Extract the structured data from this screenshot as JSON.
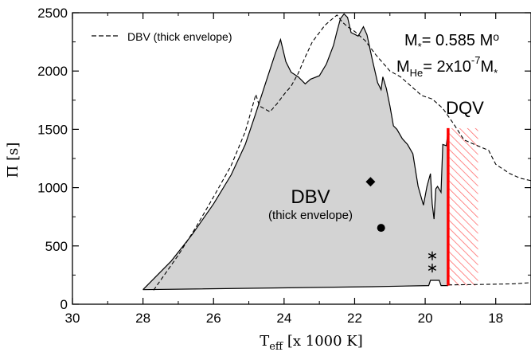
{
  "chart_data": {
    "type": "area",
    "title": "",
    "xlabel": {
      "main": "T",
      "sub": "eff",
      "rest": " [x 1000 K]"
    },
    "ylabel": "Π [s]",
    "xlim": [
      30,
      17
    ],
    "ylim": [
      0,
      2500
    ],
    "xticks": [
      30,
      28,
      26,
      24,
      22,
      20,
      18
    ],
    "yticks": [
      0,
      500,
      1000,
      1500,
      2000,
      2500
    ],
    "xtick_labels": [
      "30",
      "28",
      "26",
      "24",
      "22",
      "20",
      "18"
    ],
    "ytick_labels": [
      "0",
      "500",
      "1000",
      "1500",
      "2000",
      "2500"
    ],
    "grid": false,
    "legend": {
      "position": "top-left",
      "entries": [
        {
          "label": "DBV (thick envelope)",
          "style": "dashed"
        }
      ]
    },
    "parameters": {
      "mass": {
        "prefix": "M",
        "sub": "*",
        "mid": "= 0.585 M",
        "sub2": "o"
      },
      "helium": {
        "prefix": "M",
        "sub": "He",
        "mid": "= 2x10",
        "sup": "-7",
        "end": "M",
        "sub2": "*"
      }
    },
    "region_labels": {
      "dbv": "DBV",
      "dbv_sub": "(thick envelope)",
      "dqv": "DQV"
    },
    "colors": {
      "fill": "#d3d3d3",
      "dqv": "#ff0000",
      "line": "#000000"
    },
    "series": [
      {
        "style": "solid",
        "role": "shaded instability region (upper boundary)",
        "points": [
          [
            28.0,
            125
          ],
          [
            27.2,
            370
          ],
          [
            26.6,
            600
          ],
          [
            26.0,
            860
          ],
          [
            25.5,
            1110
          ],
          [
            25.1,
            1370
          ],
          [
            24.8,
            1640
          ],
          [
            24.5,
            1920
          ],
          [
            24.25,
            2150
          ],
          [
            24.1,
            2270
          ],
          [
            23.95,
            2080
          ],
          [
            23.8,
            1990
          ],
          [
            23.6,
            1950
          ],
          [
            23.4,
            1890
          ],
          [
            23.25,
            1930
          ],
          [
            23.0,
            1960
          ],
          [
            22.8,
            2060
          ],
          [
            22.6,
            2220
          ],
          [
            22.5,
            2340
          ],
          [
            22.4,
            2450
          ],
          [
            22.3,
            2490
          ],
          [
            22.2,
            2460
          ],
          [
            22.1,
            2330
          ],
          [
            21.9,
            2300
          ],
          [
            21.75,
            2380
          ],
          [
            21.65,
            2310
          ],
          [
            21.5,
            2100
          ],
          [
            21.35,
            1900
          ],
          [
            21.25,
            1840
          ],
          [
            21.2,
            1950
          ],
          [
            21.1,
            1850
          ],
          [
            21.0,
            1700
          ],
          [
            20.9,
            1530
          ],
          [
            20.8,
            1500
          ],
          [
            20.65,
            1420
          ],
          [
            20.5,
            1370
          ],
          [
            20.35,
            1290
          ],
          [
            20.2,
            1010
          ],
          [
            20.05,
            850
          ],
          [
            19.95,
            1010
          ],
          [
            19.85,
            1120
          ],
          [
            19.8,
            860
          ],
          [
            19.75,
            730
          ],
          [
            19.7,
            990
          ],
          [
            19.65,
            1010
          ],
          [
            19.55,
            960
          ],
          [
            19.5,
            1370
          ],
          [
            19.4,
            1360
          ],
          [
            19.35,
            1500
          ]
        ],
        "lower_boundary": [
          [
            28.0,
            125
          ],
          [
            21.5,
            150
          ],
          [
            19.9,
            160
          ],
          [
            19.85,
            205
          ],
          [
            19.6,
            205
          ],
          [
            19.55,
            160
          ],
          [
            19.35,
            160
          ]
        ]
      },
      {
        "style": "dashed",
        "name": "DBV (thick envelope)",
        "points": [
          [
            27.7,
            120
          ],
          [
            27.0,
            420
          ],
          [
            26.5,
            660
          ],
          [
            26.0,
            920
          ],
          [
            25.5,
            1190
          ],
          [
            25.1,
            1480
          ],
          [
            24.8,
            1800
          ],
          [
            24.7,
            1700
          ],
          [
            24.4,
            1650
          ],
          [
            24.2,
            1720
          ],
          [
            24.0,
            1800
          ],
          [
            23.8,
            1870
          ],
          [
            23.6,
            1980
          ],
          [
            23.4,
            2120
          ],
          [
            23.2,
            2250
          ],
          [
            23.0,
            2330
          ],
          [
            22.85,
            2390
          ],
          [
            22.7,
            2430
          ],
          [
            22.5,
            2480
          ],
          [
            22.35,
            2420
          ],
          [
            22.2,
            2380
          ],
          [
            22.0,
            2340
          ],
          [
            21.7,
            2260
          ],
          [
            21.4,
            2140
          ],
          [
            21.0,
            2000
          ],
          [
            20.7,
            1950
          ],
          [
            20.4,
            1870
          ],
          [
            20.1,
            1790
          ],
          [
            19.8,
            1760
          ],
          [
            19.5,
            1680
          ],
          [
            19.2,
            1550
          ],
          [
            18.9,
            1410
          ],
          [
            18.6,
            1370
          ],
          [
            18.2,
            1320
          ],
          [
            18.0,
            1200
          ],
          [
            17.6,
            1120
          ],
          [
            17.3,
            1080
          ],
          [
            17.0,
            1060
          ]
        ],
        "tail_points": [
          [
            19.35,
            165
          ],
          [
            18.3,
            170
          ],
          [
            17.5,
            175
          ],
          [
            17.0,
            185
          ]
        ]
      }
    ],
    "dqv_region": {
      "x_edge": 19.35,
      "x_end": 18.5,
      "y_min": 160,
      "y_max": 1510
    },
    "markers": [
      {
        "symbol": "diamond",
        "x": 21.55,
        "y": 1050
      },
      {
        "symbol": "circle",
        "x": 21.25,
        "y": 655
      },
      {
        "symbol": "asterisk",
        "x": 19.8,
        "y": 415
      },
      {
        "symbol": "asterisk",
        "x": 19.8,
        "y": 310
      }
    ]
  }
}
